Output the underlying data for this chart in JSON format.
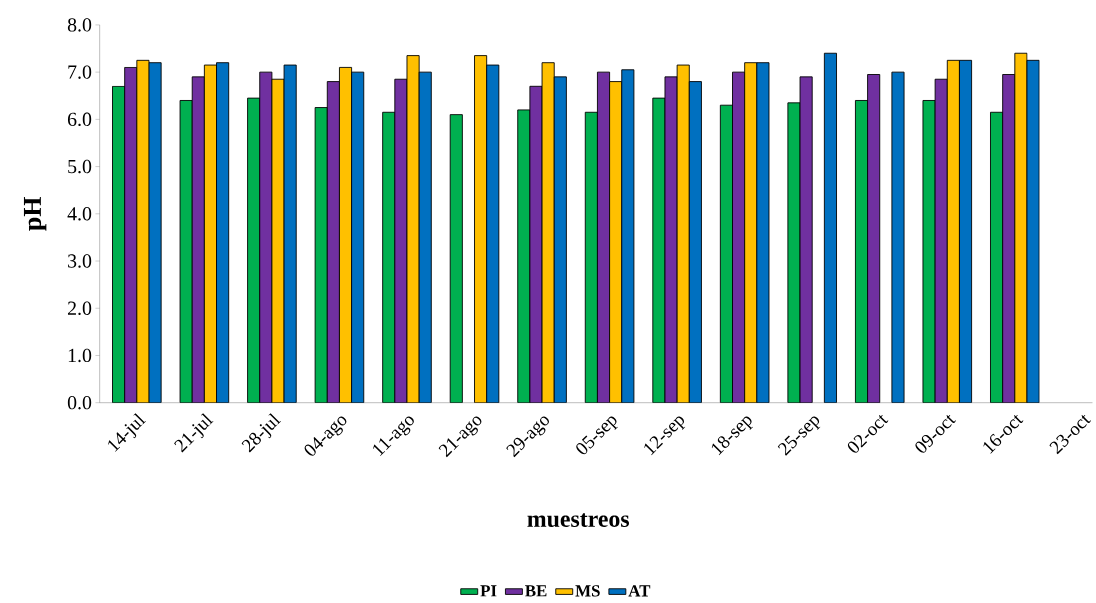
{
  "chart_data": {
    "type": "bar",
    "xlabel": "muestreos",
    "ylabel": "pH",
    "categories": [
      "14-jul",
      "21-jul",
      "28-jul",
      "04-ago",
      "11-ago",
      "21-ago",
      "29-ago",
      "05-sep",
      "12-sep",
      "18-sep",
      "25-sep",
      "02-oct",
      "09-oct",
      "16-oct",
      "23-oct"
    ],
    "series": [
      {
        "name": "PI",
        "color": "#00b050",
        "values": [
          6.7,
          6.4,
          6.45,
          6.25,
          6.15,
          6.1,
          6.2,
          6.15,
          6.45,
          6.3,
          6.35,
          6.4,
          6.4,
          6.15,
          null
        ]
      },
      {
        "name": "BE",
        "color": "#7030a0",
        "values": [
          7.1,
          6.9,
          7.0,
          6.8,
          6.85,
          null,
          6.7,
          7.0,
          6.9,
          7.0,
          6.9,
          6.95,
          6.85,
          6.95,
          null
        ]
      },
      {
        "name": "MS",
        "color": "#ffc000",
        "values": [
          7.25,
          7.15,
          6.85,
          7.1,
          7.35,
          7.35,
          7.2,
          6.8,
          7.15,
          7.2,
          null,
          null,
          7.25,
          7.4,
          null
        ]
      },
      {
        "name": "AT",
        "color": "#0070c0",
        "values": [
          7.2,
          7.2,
          7.15,
          7.0,
          7.0,
          7.15,
          6.9,
          7.05,
          6.8,
          7.2,
          7.4,
          7.0,
          7.25,
          7.25,
          null
        ]
      }
    ],
    "ylim": [
      0,
      8
    ],
    "yticks": [
      {
        "value": 0,
        "label": "0.0"
      },
      {
        "value": 1,
        "label": "1.0"
      },
      {
        "value": 2,
        "label": "2.0"
      },
      {
        "value": 3,
        "label": "3.0"
      },
      {
        "value": 4,
        "label": "4.0"
      },
      {
        "value": 5,
        "label": "5.0"
      },
      {
        "value": 6,
        "label": "6.0"
      },
      {
        "value": 7,
        "label": "7.0"
      },
      {
        "value": 8,
        "label": "8.0"
      }
    ],
    "grid": false,
    "legend": "bottom"
  }
}
